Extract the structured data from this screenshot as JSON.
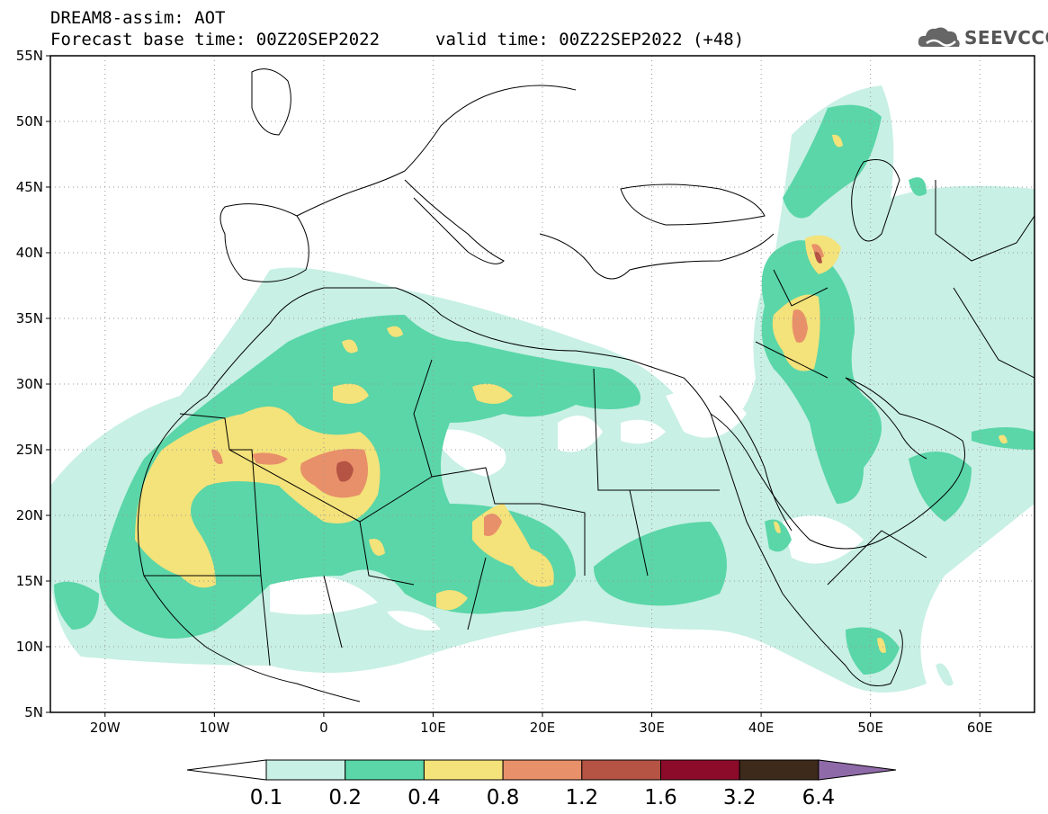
{
  "header": {
    "line1": "DREAM8-assim: AOT",
    "line2_base": "Forecast base time: 00Z20SEP2022",
    "line2_valid": "valid time: 00Z22SEP2022 (+48)",
    "logo_text": "SEEVCCC",
    "logo_icon": "cloud-icon"
  },
  "map": {
    "projection": "lat-lon",
    "lon_range": [
      -25,
      65
    ],
    "lat_range": [
      5,
      55
    ],
    "lat_ticks": [
      {
        "value": 55,
        "label": "55N"
      },
      {
        "value": 50,
        "label": "50N"
      },
      {
        "value": 45,
        "label": "45N"
      },
      {
        "value": 40,
        "label": "40N"
      },
      {
        "value": 35,
        "label": "35N"
      },
      {
        "value": 30,
        "label": "30N"
      },
      {
        "value": 25,
        "label": "25N"
      },
      {
        "value": 20,
        "label": "20N"
      },
      {
        "value": 15,
        "label": "15N"
      },
      {
        "value": 10,
        "label": "10N"
      },
      {
        "value": 5,
        "label": "5N"
      }
    ],
    "lon_ticks": [
      {
        "value": -20,
        "label": "20W"
      },
      {
        "value": -10,
        "label": "10W"
      },
      {
        "value": 0,
        "label": "0"
      },
      {
        "value": 10,
        "label": "10E"
      },
      {
        "value": 20,
        "label": "20E"
      },
      {
        "value": 30,
        "label": "30E"
      },
      {
        "value": 40,
        "label": "40E"
      },
      {
        "value": 50,
        "label": "50E"
      },
      {
        "value": 60,
        "label": "60E"
      }
    ],
    "grid": true
  },
  "legend": {
    "thresholds": [
      "0.1",
      "0.2",
      "0.4",
      "0.8",
      "1.2",
      "1.6",
      "3.2",
      "6.4"
    ],
    "colors": [
      "#ffffff",
      "#c8f0e4",
      "#5ad6a8",
      "#f4e27a",
      "#e8906a",
      "#b55344",
      "#8c0a2a",
      "#3d2a1a",
      "#8f6aa8"
    ]
  }
}
